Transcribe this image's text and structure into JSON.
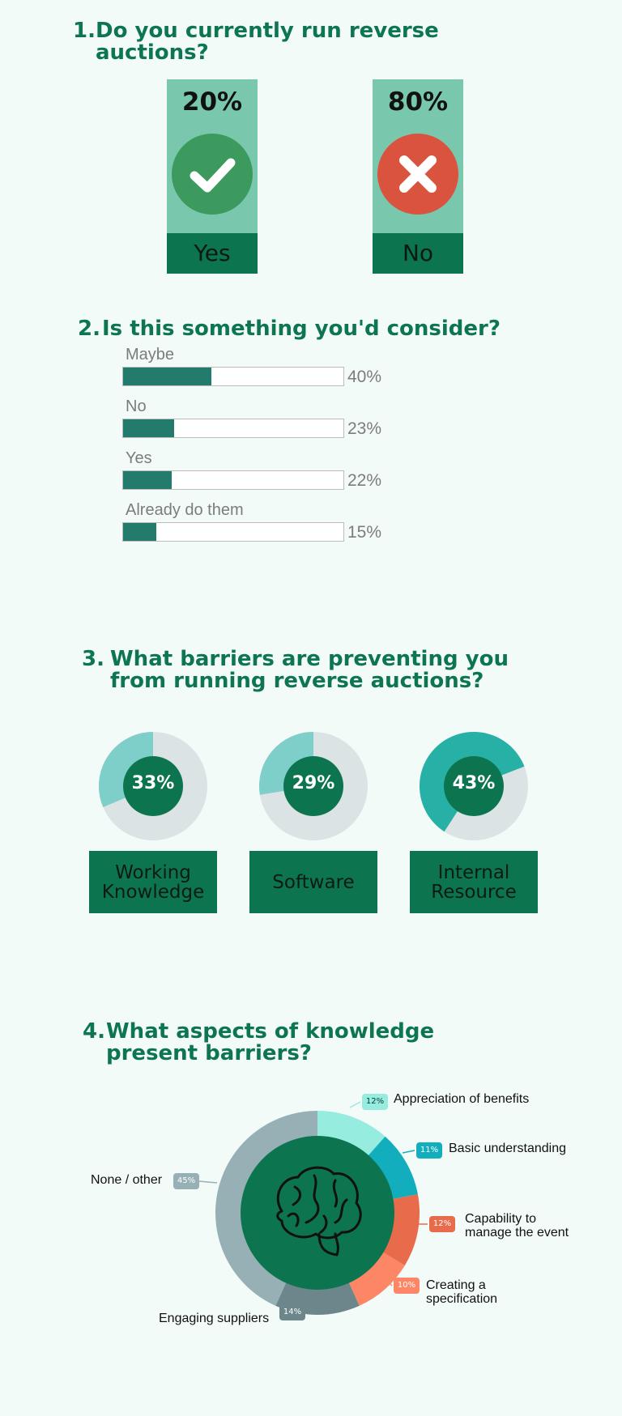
{
  "q1": {
    "number": "1.",
    "title": "Do you currently run reverse",
    "title2": "auctions?",
    "yes": {
      "pct": "20%",
      "label": "Yes",
      "color": "#3d9a5f"
    },
    "no": {
      "pct": "80%",
      "label": "No",
      "color": "#d9533f"
    }
  },
  "q2": {
    "number": "2.",
    "title": "Is this something you'd consider?",
    "options": [
      {
        "label": "Maybe",
        "pct": "40%",
        "value": 40
      },
      {
        "label": "No",
        "pct": "23%",
        "value": 23
      },
      {
        "label": "Yes",
        "pct": "22%",
        "value": 22
      },
      {
        "label": "Already do them",
        "pct": "15%",
        "value": 15
      }
    ]
  },
  "q3": {
    "number": "3.",
    "title": "What barriers are preventing you",
    "title2": "from running reverse auctions?",
    "barriers": [
      {
        "pct": "33%",
        "value": 33,
        "label": "Working\nKnowledge",
        "color": "#7ecfc9"
      },
      {
        "pct": "29%",
        "value": 29,
        "label": "Software",
        "color": "#7ecfc9"
      },
      {
        "pct": "43%",
        "value": 43,
        "label": "Internal\nResource",
        "color": "#26b0a6"
      }
    ]
  },
  "q4": {
    "number": "4.",
    "title": "What aspects of knowledge",
    "title2": "present barriers?",
    "segments": [
      {
        "label": "Appreciation of benefits",
        "pct": "12%",
        "value": 12,
        "color": "#97ece0"
      },
      {
        "label": "Basic understanding",
        "pct": "11%",
        "value": 11,
        "color": "#12aebe"
      },
      {
        "label": "Capability to\nmanage the event",
        "pct": "12%",
        "value": 12,
        "color": "#e86c4c"
      },
      {
        "label": "Creating a\nspecification",
        "pct": "10%",
        "value": 10,
        "color": "#fd8666"
      },
      {
        "label": "Engaging suppliers",
        "pct": "14%",
        "value": 14,
        "color": "#6c868c"
      },
      {
        "label": "None / other",
        "pct": "45%",
        "value": 45,
        "color": "#96b0b5"
      }
    ],
    "center_color": "#0c7550",
    "center_icon": "brain-icon"
  },
  "chart_data": [
    {
      "type": "bar",
      "title": "Do you currently run reverse auctions?",
      "categories": [
        "Yes",
        "No"
      ],
      "values": [
        20,
        80
      ]
    },
    {
      "type": "bar",
      "title": "Is this something you'd consider?",
      "categories": [
        "Maybe",
        "No",
        "Yes",
        "Already do them"
      ],
      "values": [
        40,
        23,
        22,
        15
      ],
      "ylim": [
        0,
        100
      ]
    },
    {
      "type": "pie",
      "title": "What barriers are preventing you from running reverse auctions?",
      "categories": [
        "Working Knowledge",
        "Software",
        "Internal Resource"
      ],
      "values": [
        33,
        29,
        43
      ]
    },
    {
      "type": "pie",
      "title": "What aspects of knowledge present barriers?",
      "categories": [
        "Appreciation of benefits",
        "Basic understanding",
        "Capability to manage the event",
        "Creating a specification",
        "Engaging suppliers",
        "None / other"
      ],
      "values": [
        12,
        11,
        12,
        10,
        14,
        45
      ]
    }
  ]
}
